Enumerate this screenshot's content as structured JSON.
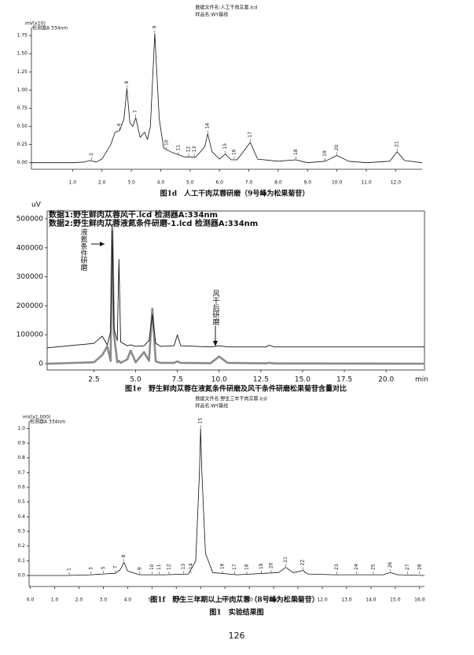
{
  "chart_data": [
    {
      "type": "line",
      "header": [
        "数据文件名:人工干肉苁蓉.lcd",
        "样品名:WY基线"
      ],
      "y_label": "mV(x10)",
      "detector": "检测器A 334nm",
      "title": "图1d　人工干肉苁蓉研磨（9号峰为松果菊苷）",
      "xlim": [
        -0.4,
        12.9
      ],
      "ylim": [
        -0.09,
        1.86
      ],
      "xticks": [
        {
          "value": 1,
          "label": "1.0"
        },
        {
          "value": 2,
          "label": "2.0"
        },
        {
          "value": 3,
          "label": "3.0"
        },
        {
          "value": 4,
          "label": "4.0"
        },
        {
          "value": 5,
          "label": "5.0"
        },
        {
          "value": 6,
          "label": "6.0"
        },
        {
          "value": 7,
          "label": "7.0"
        },
        {
          "value": 8,
          "label": "8.0"
        },
        {
          "value": 9,
          "label": "9.0"
        },
        {
          "value": 10,
          "label": "10.0"
        },
        {
          "value": 11,
          "label": "11.0"
        },
        {
          "value": 12,
          "label": "12.0"
        }
      ],
      "yticks": [
        {
          "value": 0,
          "label": "0.00"
        },
        {
          "value": 0.25,
          "label": "0.25"
        },
        {
          "value": 0.5,
          "label": "0.50"
        },
        {
          "value": 0.75,
          "label": "0.75"
        },
        {
          "value": 1,
          "label": "1.00"
        },
        {
          "value": 1.25,
          "label": "1.25"
        },
        {
          "value": 1.5,
          "label": "1.50"
        },
        {
          "value": 1.75,
          "label": "1.75"
        }
      ],
      "x": [
        -0.4,
        1.0,
        1.4,
        1.6,
        1.8,
        2.0,
        2.3,
        2.45,
        2.6,
        2.75,
        2.85,
        2.95,
        3.05,
        3.15,
        3.3,
        3.45,
        3.55,
        3.65,
        3.8,
        3.95,
        4.1,
        4.4,
        4.8,
        5.2,
        5.5,
        5.6,
        5.75,
        6.0,
        6.2,
        6.4,
        6.6,
        6.9,
        7.05,
        7.3,
        8.0,
        8.6,
        9.0,
        9.6,
        10.0,
        10.4,
        11.0,
        11.8,
        12.05,
        12.3,
        12.9
      ],
      "values": [
        0,
        0,
        0.01,
        0.03,
        0.01,
        0.05,
        0.25,
        0.42,
        0.44,
        0.6,
        1.02,
        0.55,
        0.5,
        0.62,
        0.35,
        0.42,
        0.32,
        0.5,
        1.78,
        0.6,
        0.2,
        0.14,
        0.08,
        0.08,
        0.22,
        0.4,
        0.15,
        0.05,
        0.12,
        0.04,
        0.04,
        0.2,
        0.28,
        0.05,
        0.02,
        0.04,
        0,
        0.02,
        0.1,
        0.02,
        0,
        0.02,
        0.15,
        0.03,
        0
      ],
      "peaks": [
        {
          "label": "2",
          "x": 1.65,
          "y": 0.03
        },
        {
          "label": "6",
          "x": 2.6,
          "y": 0.44
        },
        {
          "label": "8",
          "x": 2.85,
          "y": 1.02
        },
        {
          "label": "7",
          "x": 3.15,
          "y": 0.62
        },
        {
          "label": "9",
          "x": 3.8,
          "y": 1.78
        },
        {
          "label": "10",
          "x": 4.2,
          "y": 0.17
        },
        {
          "label": "11",
          "x": 4.6,
          "y": 0.1
        },
        {
          "label": "12",
          "x": 4.95,
          "y": 0.08
        },
        {
          "label": "13",
          "x": 5.15,
          "y": 0.08
        },
        {
          "label": "14",
          "x": 5.6,
          "y": 0.4
        },
        {
          "label": "15",
          "x": 6.2,
          "y": 0.12
        },
        {
          "label": "16",
          "x": 6.5,
          "y": 0.04
        },
        {
          "label": "17",
          "x": 7.05,
          "y": 0.28
        },
        {
          "label": "18",
          "x": 8.6,
          "y": 0.04
        },
        {
          "label": "19",
          "x": 9.6,
          "y": 0.02
        },
        {
          "label": "20",
          "x": 10.0,
          "y": 0.1
        },
        {
          "label": "21",
          "x": 12.05,
          "y": 0.15
        }
      ]
    },
    {
      "type": "line",
      "y_label": "uV",
      "x_label": "min",
      "title": "图1e　野生鲜肉苁蓉在液氮条件研磨及风干条件研磨松果菊苷含量对比",
      "annotations": [
        "液氮条件研磨",
        "风干后研磨"
      ],
      "xlim": [
        -0.3,
        22.3
      ],
      "ylim": [
        -21700,
        527000
      ],
      "xticks": [
        2.5,
        {
          "value": 5,
          "label": "5.0"
        },
        7.5,
        {
          "value": 10,
          "label": "10.0"
        },
        12.5,
        {
          "value": 15,
          "label": "15.0"
        },
        17.5,
        {
          "value": 20,
          "label": "20.0"
        }
      ],
      "yticks": [
        0,
        100000,
        200000,
        300000,
        400000,
        500000
      ],
      "x": [
        -0.3,
        2.5,
        3.0,
        3.3,
        3.5,
        3.6,
        3.7,
        3.9,
        4.0,
        4.1,
        4.5,
        4.7,
        5.0,
        5.5,
        5.8,
        6.0,
        6.2,
        6.5,
        7.3,
        7.5,
        7.7,
        9.5,
        10.0,
        10.5,
        12.8,
        13.0,
        13.3,
        22.3
      ],
      "series": [
        {
          "name": "数据1:野生鲜肉苁蓉风干.lcd 检测器A:334nm",
          "color": "#111111",
          "width": 0.9,
          "values": [
            55000,
            70000,
            95000,
            65000,
            110000,
            460000,
            120000,
            80000,
            360000,
            75000,
            62000,
            65000,
            60000,
            62000,
            80000,
            170000,
            70000,
            60000,
            62000,
            100000,
            62000,
            58000,
            62000,
            58000,
            58000,
            64000,
            58000,
            58000
          ]
        },
        {
          "name": "数据2:野生鲜肉苁蓉液氮条件研磨-1.lcd 检测器A:334nm",
          "color": "#8a8a8a",
          "width": 2.6,
          "values": [
            0,
            5000,
            30000,
            60000,
            10000,
            480000,
            100000,
            5000,
            10000,
            3000,
            15000,
            45000,
            5000,
            40000,
            10000,
            190000,
            8000,
            3000,
            3000,
            8000,
            3000,
            2000,
            25000,
            3000,
            1000,
            3000,
            1000,
            0
          ]
        }
      ]
    },
    {
      "type": "line",
      "header": [
        "数据文件名:野生三年干肉苁蓉.lcd",
        "样品名:WY基线"
      ],
      "y_label": "mV(x1,000)",
      "detector": "检测器A 334nm",
      "title": "图1f　野生三年期以上干肉苁蓉（8号峰为松果菊苷）",
      "xlim": [
        -0.05,
        16.2
      ],
      "ylim": [
        -0.075,
        1.05
      ],
      "xticks": [
        {
          "value": 0,
          "label": "0.0"
        },
        {
          "value": 1,
          "label": "1.0"
        },
        {
          "value": 2,
          "label": "2.0"
        },
        {
          "value": 3,
          "label": "3.0"
        },
        {
          "value": 4,
          "label": "4.0"
        },
        {
          "value": 5,
          "label": "5.0"
        },
        {
          "value": 6,
          "label": "6.0"
        },
        {
          "value": 7,
          "label": "7.0"
        },
        {
          "value": 8,
          "label": "8.0"
        },
        {
          "value": 9,
          "label": "9.0"
        },
        {
          "value": 10,
          "label": "10.0"
        },
        {
          "value": 11,
          "label": "11.0"
        },
        {
          "value": 12,
          "label": "12.0"
        },
        {
          "value": 13,
          "label": "13.0"
        },
        {
          "value": 14,
          "label": "14.0"
        },
        {
          "value": 15,
          "label": "15.0"
        },
        {
          "value": 16,
          "label": "16.0"
        }
      ],
      "yticks": [
        {
          "value": 0,
          "label": "0.0"
        },
        {
          "value": 0.1,
          "label": "0.1"
        },
        {
          "value": 0.2,
          "label": "0.2"
        },
        {
          "value": 0.3,
          "label": "0.3"
        },
        {
          "value": 0.4,
          "label": "0.4"
        },
        {
          "value": 0.5,
          "label": "0.5"
        },
        {
          "value": 0.6,
          "label": "0.6"
        },
        {
          "value": 0.7,
          "label": "0.7"
        },
        {
          "value": 0.8,
          "label": "0.8"
        },
        {
          "value": 0.9,
          "label": "0.9"
        },
        {
          "value": 1,
          "label": "1.0"
        }
      ],
      "x": [
        -0.05,
        1.5,
        2.5,
        3.0,
        3.5,
        3.7,
        3.85,
        4.0,
        4.5,
        5.5,
        6.5,
        6.8,
        6.95,
        7.0,
        7.05,
        7.2,
        7.5,
        8.5,
        10.2,
        10.5,
        10.8,
        11.0,
        11.2,
        11.4,
        12.5,
        14.5,
        14.8,
        15.1,
        16.2
      ],
      "values": [
        0,
        0,
        0.005,
        0.01,
        0.015,
        0.04,
        0.09,
        0.03,
        0.005,
        0.005,
        0.01,
        0.1,
        0.7,
        1.0,
        0.7,
        0.15,
        0.02,
        0.005,
        0.02,
        0.055,
        0.02,
        0.025,
        0.035,
        0.01,
        0.005,
        0.005,
        0.02,
        0.005,
        0
      ],
      "peaks": [
        {
          "label": "1",
          "x": 1.6,
          "y": 0
        },
        {
          "label": "3",
          "x": 2.5,
          "y": 0.005
        },
        {
          "label": "5",
          "x": 3.0,
          "y": 0.01
        },
        {
          "label": "7",
          "x": 3.5,
          "y": 0.015
        },
        {
          "label": "8",
          "x": 3.85,
          "y": 0.09
        },
        {
          "label": "9",
          "x": 4.5,
          "y": 0.005
        },
        {
          "label": "10",
          "x": 5.0,
          "y": 0.005
        },
        {
          "label": "11",
          "x": 5.3,
          "y": 0.005
        },
        {
          "label": "12",
          "x": 5.7,
          "y": 0.005
        },
        {
          "label": "13",
          "x": 6.3,
          "y": 0.008
        },
        {
          "label": "14",
          "x": 6.6,
          "y": 0.01
        },
        {
          "label": "15",
          "x": 7.0,
          "y": 1.0
        },
        {
          "label": "16",
          "x": 7.9,
          "y": 0.01
        },
        {
          "label": "17",
          "x": 8.4,
          "y": 0.005
        },
        {
          "label": "18",
          "x": 8.9,
          "y": 0.005
        },
        {
          "label": "19",
          "x": 9.5,
          "y": 0.01
        },
        {
          "label": "20",
          "x": 9.9,
          "y": 0.015
        },
        {
          "label": "21",
          "x": 10.5,
          "y": 0.055
        },
        {
          "label": "22",
          "x": 11.2,
          "y": 0.035
        },
        {
          "label": "23",
          "x": 12.6,
          "y": 0.005
        },
        {
          "label": "24",
          "x": 13.4,
          "y": 0.005
        },
        {
          "label": "25",
          "x": 14.1,
          "y": 0.005
        },
        {
          "label": "26",
          "x": 14.8,
          "y": 0.02
        },
        {
          "label": "27",
          "x": 15.5,
          "y": 0.005
        },
        {
          "label": "28",
          "x": 16.0,
          "y": 0.005
        }
      ]
    }
  ],
  "figure_caption": "图1　实验结果图",
  "page_number": "126"
}
